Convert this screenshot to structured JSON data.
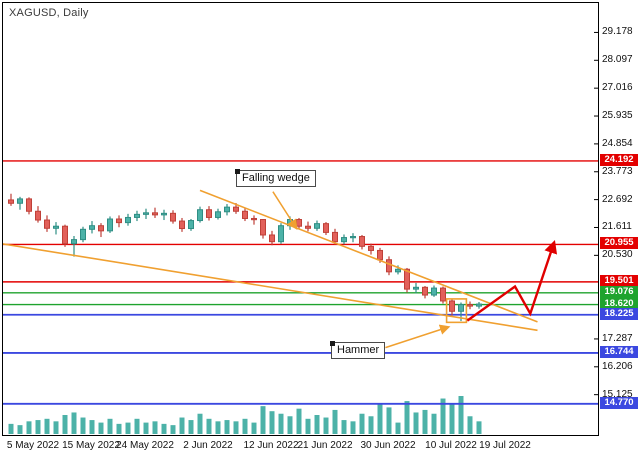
{
  "header": {
    "symbol_label": "XAGUSD,  Daily"
  },
  "colors": {
    "bull": "#4cb2a8",
    "bull_stroke": "#2f8e84",
    "bear": "#e2605a",
    "bear_stroke": "#bf4038",
    "volume": "#4cb2a8",
    "red_level": "#e30000",
    "green_level": "#1fa32e",
    "blue_level": "#3b48e0",
    "trend": "#f0a030",
    "projection": "#e00000",
    "axis_text": "#111111"
  },
  "price_axis": {
    "tick_labels": [
      29.178,
      28.097,
      27.016,
      25.935,
      24.854,
      23.773,
      22.692,
      21.611,
      20.53,
      17.287,
      16.206,
      15.125
    ]
  },
  "time_axis": {
    "labels": [
      {
        "text": "5 May 2022",
        "index": 2
      },
      {
        "text": "15 May 2022",
        "index": 9
      },
      {
        "text": "24 May 2022",
        "index": 15
      },
      {
        "text": "2 Jun 2022",
        "index": 22
      },
      {
        "text": "12 Jun 2022",
        "index": 29
      },
      {
        "text": "21 Jun 2022",
        "index": 35
      },
      {
        "text": "30 Jun 2022",
        "index": 42
      },
      {
        "text": "10 Jul 2022",
        "index": 49
      },
      {
        "text": "19 Jul 2022",
        "index": 55
      }
    ]
  },
  "chart_data": {
    "type": "candlestick",
    "symbol": "XAGUSD",
    "timeframe": "Daily",
    "ylim": [
      13.56,
      30.32
    ],
    "horizontal_lines": [
      {
        "price": 24.192,
        "color_key": "red_level",
        "weight": 1.4
      },
      {
        "price": 20.955,
        "color_key": "red_level",
        "weight": 1.4
      },
      {
        "price": 19.501,
        "color_key": "red_level",
        "weight": 1.4
      },
      {
        "price": 19.076,
        "color_key": "green_level",
        "weight": 1.4
      },
      {
        "price": 18.62,
        "color_key": "green_level",
        "weight": 1.4
      },
      {
        "price": 18.225,
        "color_key": "blue_level",
        "weight": 1.8
      },
      {
        "price": 16.744,
        "color_key": "blue_level",
        "weight": 1.8
      },
      {
        "price": 14.77,
        "color_key": "blue_level",
        "weight": 1.8
      }
    ],
    "candles": [
      {
        "t": "3 May",
        "o": 22.68,
        "h": 22.92,
        "l": 22.45,
        "c": 22.55,
        "v": 8
      },
      {
        "t": "4 May",
        "o": 22.55,
        "h": 22.8,
        "l": 22.3,
        "c": 22.72,
        "v": 7
      },
      {
        "t": "5 May",
        "o": 22.72,
        "h": 22.78,
        "l": 22.12,
        "c": 22.24,
        "v": 10
      },
      {
        "t": "6 May",
        "o": 22.24,
        "h": 22.44,
        "l": 21.8,
        "c": 21.9,
        "v": 11
      },
      {
        "t": "9 May",
        "o": 21.9,
        "h": 22.08,
        "l": 21.44,
        "c": 21.58,
        "v": 12
      },
      {
        "t": "10 May",
        "o": 21.58,
        "h": 21.82,
        "l": 21.34,
        "c": 21.66,
        "v": 10
      },
      {
        "t": "11 May",
        "o": 21.66,
        "h": 21.72,
        "l": 20.86,
        "c": 20.98,
        "v": 15
      },
      {
        "t": "12 May",
        "o": 20.98,
        "h": 21.28,
        "l": 20.48,
        "c": 21.14,
        "v": 17
      },
      {
        "t": "13 May",
        "o": 21.14,
        "h": 21.64,
        "l": 21.04,
        "c": 21.54,
        "v": 13
      },
      {
        "t": "16 May",
        "o": 21.54,
        "h": 21.86,
        "l": 21.38,
        "c": 21.68,
        "v": 11
      },
      {
        "t": "17 May",
        "o": 21.68,
        "h": 21.78,
        "l": 21.24,
        "c": 21.48,
        "v": 9
      },
      {
        "t": "18 May",
        "o": 21.48,
        "h": 22.04,
        "l": 21.4,
        "c": 21.94,
        "v": 12
      },
      {
        "t": "19 May",
        "o": 21.94,
        "h": 22.08,
        "l": 21.62,
        "c": 21.8,
        "v": 8
      },
      {
        "t": "20 May",
        "o": 21.8,
        "h": 22.14,
        "l": 21.68,
        "c": 22.0,
        "v": 9
      },
      {
        "t": "23 May",
        "o": 22.0,
        "h": 22.26,
        "l": 21.86,
        "c": 22.12,
        "v": 12
      },
      {
        "t": "24 May",
        "o": 22.12,
        "h": 22.34,
        "l": 21.94,
        "c": 22.18,
        "v": 9
      },
      {
        "t": "25 May",
        "o": 22.18,
        "h": 22.38,
        "l": 21.98,
        "c": 22.1,
        "v": 10
      },
      {
        "t": "26 May",
        "o": 22.1,
        "h": 22.3,
        "l": 21.9,
        "c": 22.16,
        "v": 8
      },
      {
        "t": "27 May",
        "o": 22.16,
        "h": 22.28,
        "l": 21.76,
        "c": 21.86,
        "v": 7
      },
      {
        "t": "30 May",
        "o": 21.86,
        "h": 21.98,
        "l": 21.44,
        "c": 21.57,
        "v": 13
      },
      {
        "t": "31 May",
        "o": 21.57,
        "h": 21.94,
        "l": 21.48,
        "c": 21.88,
        "v": 11
      },
      {
        "t": "1 Jun",
        "o": 21.88,
        "h": 22.42,
        "l": 21.8,
        "c": 22.3,
        "v": 16
      },
      {
        "t": "2 Jun",
        "o": 22.3,
        "h": 22.44,
        "l": 21.88,
        "c": 22.0,
        "v": 12
      },
      {
        "t": "3 Jun",
        "o": 22.0,
        "h": 22.34,
        "l": 21.92,
        "c": 22.22,
        "v": 10
      },
      {
        "t": "6 Jun",
        "o": 22.22,
        "h": 22.52,
        "l": 22.08,
        "c": 22.4,
        "v": 11
      },
      {
        "t": "7 Jun",
        "o": 22.4,
        "h": 22.56,
        "l": 22.14,
        "c": 22.24,
        "v": 10
      },
      {
        "t": "8 Jun",
        "o": 22.24,
        "h": 22.36,
        "l": 21.86,
        "c": 21.96,
        "v": 12
      },
      {
        "t": "9 Jun",
        "o": 21.96,
        "h": 22.08,
        "l": 21.72,
        "c": 21.92,
        "v": 9
      },
      {
        "t": "10 Jun",
        "o": 21.92,
        "h": 21.94,
        "l": 21.18,
        "c": 21.32,
        "v": 22
      },
      {
        "t": "13 Jun",
        "o": 21.32,
        "h": 21.48,
        "l": 20.92,
        "c": 21.06,
        "v": 18
      },
      {
        "t": "14 Jun",
        "o": 21.06,
        "h": 21.78,
        "l": 20.98,
        "c": 21.68,
        "v": 16
      },
      {
        "t": "15 Jun",
        "o": 21.68,
        "h": 22.04,
        "l": 21.52,
        "c": 21.92,
        "v": 14
      },
      {
        "t": "16 Jun",
        "o": 21.92,
        "h": 21.98,
        "l": 21.54,
        "c": 21.66,
        "v": 20
      },
      {
        "t": "17 Jun",
        "o": 21.66,
        "h": 21.84,
        "l": 21.46,
        "c": 21.58,
        "v": 12
      },
      {
        "t": "20 Jun",
        "o": 21.58,
        "h": 21.88,
        "l": 21.48,
        "c": 21.76,
        "v": 15
      },
      {
        "t": "21 Jun",
        "o": 21.76,
        "h": 21.82,
        "l": 21.32,
        "c": 21.42,
        "v": 13
      },
      {
        "t": "22 Jun",
        "o": 21.42,
        "h": 21.56,
        "l": 20.94,
        "c": 21.06,
        "v": 19
      },
      {
        "t": "23 Jun",
        "o": 21.06,
        "h": 21.34,
        "l": 20.96,
        "c": 21.22,
        "v": 11
      },
      {
        "t": "24 Jun",
        "o": 21.22,
        "h": 21.39,
        "l": 21.04,
        "c": 21.26,
        "v": 10
      },
      {
        "t": "27 Jun",
        "o": 21.26,
        "h": 21.32,
        "l": 20.76,
        "c": 20.88,
        "v": 16
      },
      {
        "t": "28 Jun",
        "o": 20.88,
        "h": 20.99,
        "l": 20.56,
        "c": 20.72,
        "v": 14
      },
      {
        "t": "29 Jun",
        "o": 20.72,
        "h": 20.82,
        "l": 20.24,
        "c": 20.36,
        "v": 24
      },
      {
        "t": "30 Jun",
        "o": 20.36,
        "h": 20.49,
        "l": 19.76,
        "c": 19.89,
        "v": 21
      },
      {
        "t": "1 Jul",
        "o": 19.89,
        "h": 20.14,
        "l": 19.79,
        "c": 19.99,
        "v": 9
      },
      {
        "t": "4 Jul",
        "o": 19.99,
        "h": 20.04,
        "l": 19.09,
        "c": 19.22,
        "v": 26
      },
      {
        "t": "5 Jul",
        "o": 19.22,
        "h": 19.46,
        "l": 19.06,
        "c": 19.29,
        "v": 17
      },
      {
        "t": "6 Jul",
        "o": 19.29,
        "h": 19.34,
        "l": 18.86,
        "c": 18.99,
        "v": 19
      },
      {
        "t": "7 Jul",
        "o": 18.99,
        "h": 19.36,
        "l": 18.92,
        "c": 19.26,
        "v": 16
      },
      {
        "t": "8 Jul",
        "o": 19.26,
        "h": 19.32,
        "l": 18.66,
        "c": 18.76,
        "v": 28
      },
      {
        "t": "11 Jul",
        "o": 18.76,
        "h": 18.82,
        "l": 18.19,
        "c": 18.36,
        "v": 24
      },
      {
        "t": "12 Jul",
        "o": 18.36,
        "h": 18.7,
        "l": 17.98,
        "c": 18.62,
        "v": 30
      },
      {
        "t": "13 Jul",
        "o": 18.62,
        "h": 18.74,
        "l": 18.44,
        "c": 18.56,
        "v": 14
      },
      {
        "t": "14 Jul",
        "o": 18.56,
        "h": 18.72,
        "l": 18.46,
        "c": 18.64,
        "v": 10
      }
    ],
    "trend_lines": [
      {
        "name": "falling-wedge-upper",
        "from": {
          "i": 21,
          "p": 23.05
        },
        "to": {
          "i": 58.5,
          "p": 17.95
        }
      },
      {
        "name": "falling-wedge-lower",
        "from": {
          "i": -1,
          "p": 20.98
        },
        "to": {
          "i": 58.5,
          "p": 17.62
        }
      }
    ],
    "arrows": [
      {
        "name": "falling-wedge-pointer",
        "from": {
          "i": 29.1,
          "p": 23.0
        },
        "to": {
          "i": 31.7,
          "p": 21.58
        }
      },
      {
        "name": "hammer-pointer",
        "from": {
          "i": 41.6,
          "p": 16.95
        },
        "to": {
          "i": 48.6,
          "p": 17.75
        }
      }
    ],
    "projection_path": [
      [
        50.7,
        18.0
      ],
      [
        56.0,
        19.32
      ],
      [
        57.7,
        18.27
      ],
      [
        60.3,
        20.98
      ]
    ],
    "highlight_box": {
      "from_i": 48.4,
      "to_i": 50.6,
      "top_p": 18.84,
      "bottom_p": 17.93
    },
    "annotations": [
      {
        "text": "Falling wedge",
        "anchor": {
          "i": 25.0,
          "p": 23.85
        }
      },
      {
        "text": "Hammer",
        "anchor": {
          "i": 35.6,
          "p": 17.15
        }
      }
    ]
  }
}
